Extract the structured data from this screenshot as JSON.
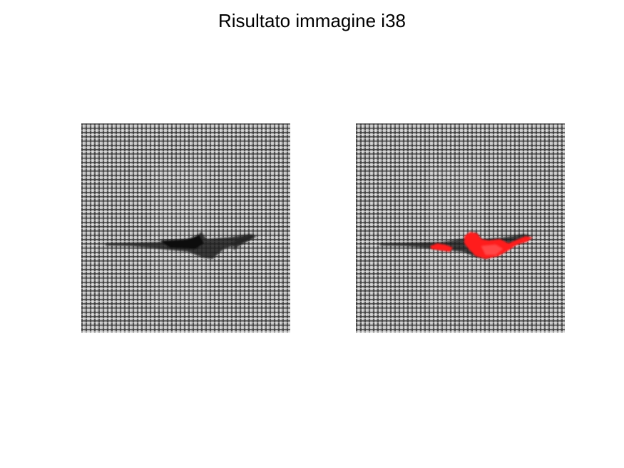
{
  "figure": {
    "title": "Risultato immagine i38"
  },
  "panels": [
    {
      "id": "original",
      "content": "grayscale woven fabric texture with dark horizontal defect"
    },
    {
      "id": "result",
      "content": "same fabric texture with defect region highlighted"
    }
  ],
  "colors": {
    "background": "#ffffff",
    "fabric_light": "#d8d8d8",
    "fabric_dark": "#4a4a4a",
    "defect": "#1c1c1c",
    "highlight": "#ff1a1a"
  }
}
